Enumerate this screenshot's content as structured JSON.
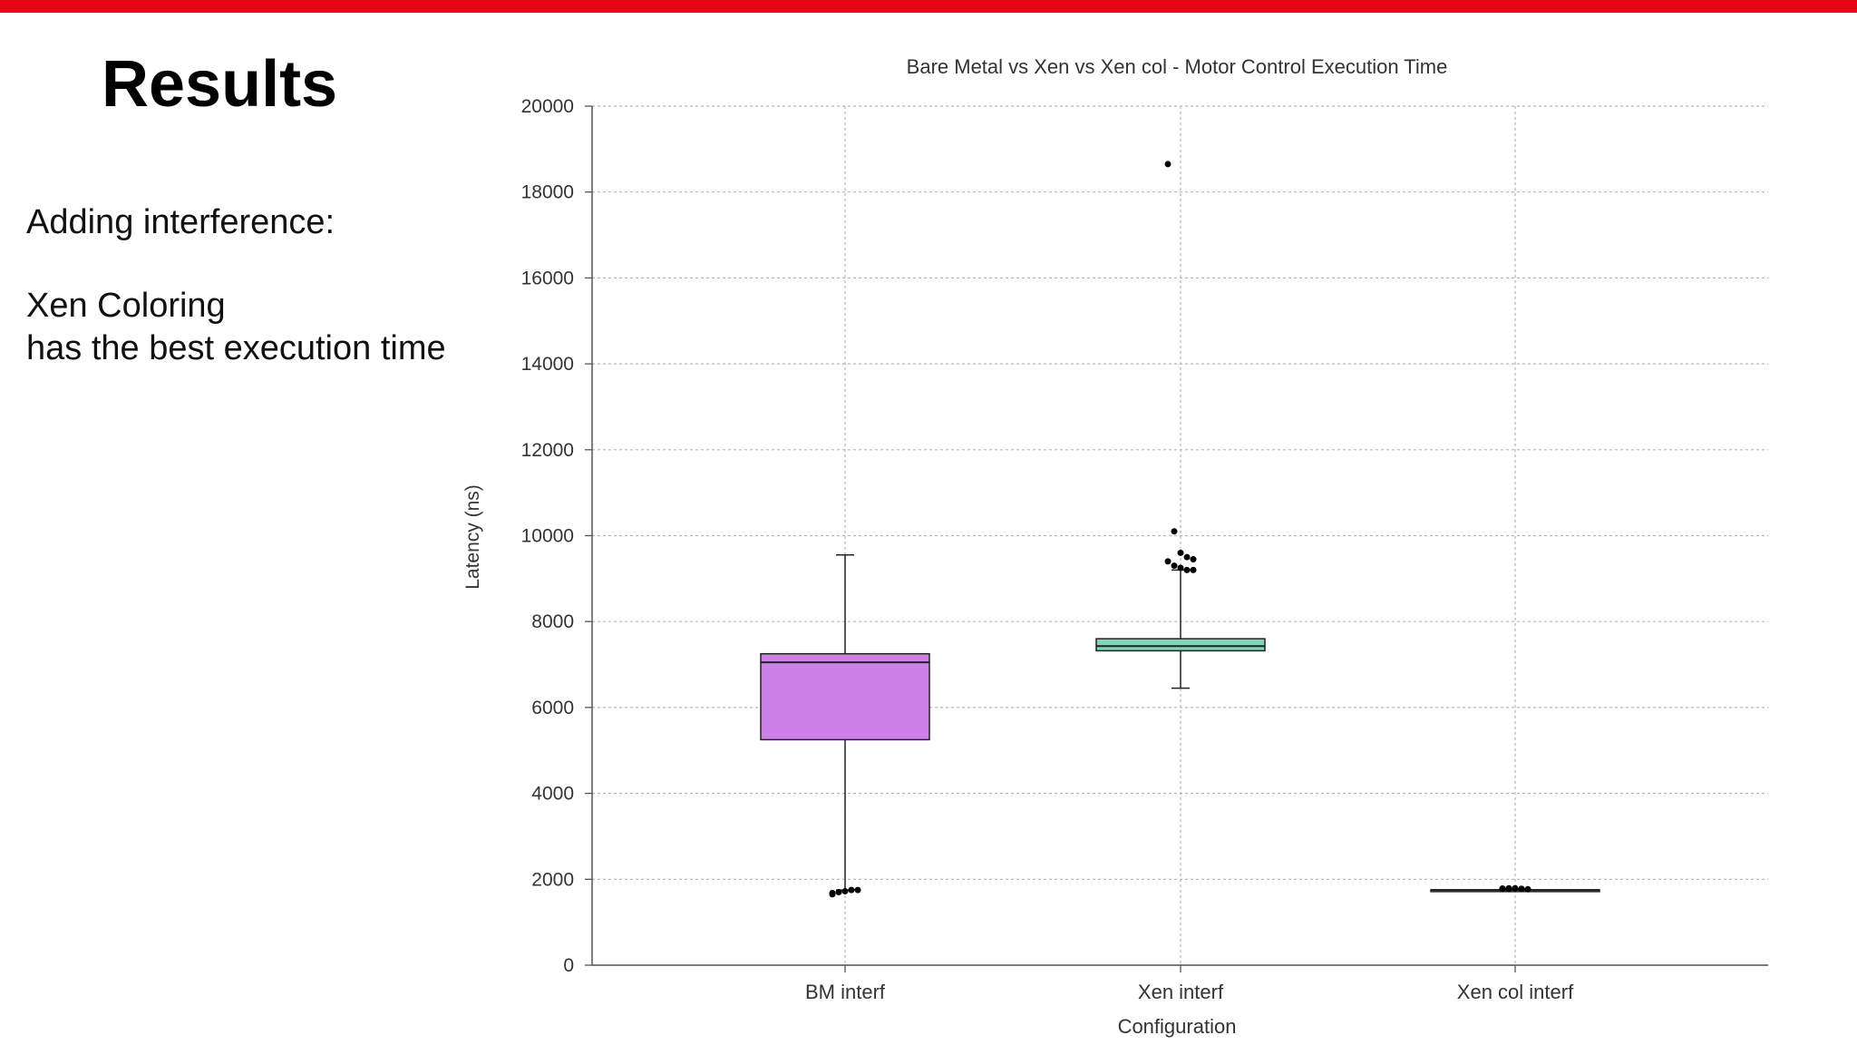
{
  "slide": {
    "title": "Results",
    "bullet_intro": "Adding interference:",
    "bullet_line1": "Xen Coloring",
    "bullet_line2": "has the best execution time",
    "accent_color": "#e30613"
  },
  "chart_data": {
    "type": "box",
    "title": "Bare Metal vs Xen vs Xen col - Motor Control Execution Time",
    "xlabel": "Configuration",
    "ylabel": "Latency (ns)",
    "ylim": [
      0,
      20000
    ],
    "yticks": [
      "0",
      "2000",
      "4000",
      "6000",
      "8000",
      "10000",
      "12000",
      "14000",
      "16000",
      "18000",
      "20000"
    ],
    "categories": [
      "BM interf",
      "Xen interf",
      "Xen col interf"
    ],
    "grid": true,
    "boxes": [
      {
        "category": "BM interf",
        "color": "#cc80e8",
        "whisker_low": 1750,
        "q1": 5250,
        "median": 7050,
        "q3": 7250,
        "whisker_high": 9550,
        "outliers": [
          1650,
          1700,
          1720,
          1750,
          1750,
          1680
        ]
      },
      {
        "category": "Xen interf",
        "color": "#7fd6b8",
        "whisker_low": 6450,
        "q1": 7320,
        "median": 7430,
        "q3": 7600,
        "whisker_high": 9200,
        "outliers": [
          18650,
          10100,
          9600,
          9500,
          9450,
          9400,
          9300,
          9250,
          9200,
          9200
        ]
      },
      {
        "category": "Xen col interf",
        "color": "#7fd6b8",
        "whisker_low": 1750,
        "q1": 1750,
        "median": 1750,
        "q3": 1755,
        "whisker_high": 1760,
        "outliers": [
          1780,
          1775,
          1790,
          1780,
          1770,
          1785,
          1790
        ]
      }
    ]
  }
}
